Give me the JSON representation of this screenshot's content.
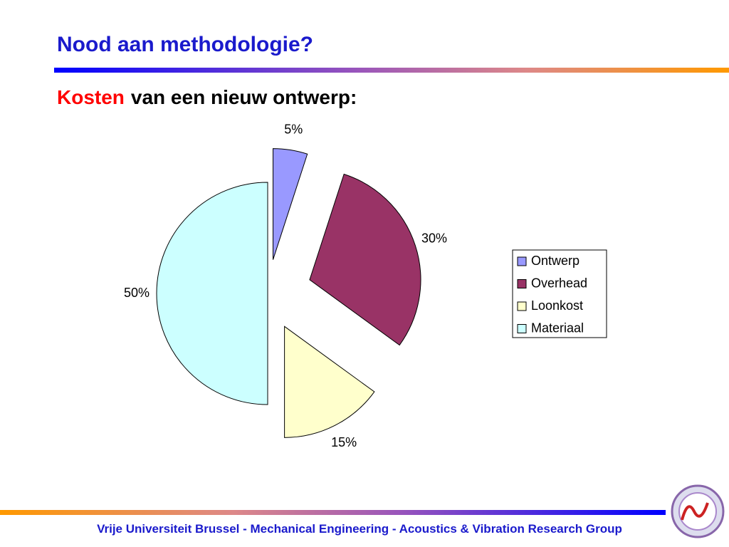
{
  "header": {
    "title": "Nood aan methodologie?"
  },
  "subtitle": {
    "emphasis": "Kosten",
    "rest": "van een nieuw ontwerp:"
  },
  "chart_data": {
    "type": "pie",
    "categories": [
      "Ontwerp",
      "Overhead",
      "Loonkost",
      "Materiaal"
    ],
    "values": [
      5,
      30,
      15,
      50
    ],
    "value_labels": [
      "5%",
      "30%",
      "15%",
      "50%"
    ],
    "colors": [
      "#9999ff",
      "#993366",
      "#ffffcc",
      "#ccffff"
    ],
    "legend": "right"
  },
  "footer": {
    "text": "Vrije Universiteit Brussel - Mechanical Engineering - Acoustics & Vibration Research Group"
  }
}
